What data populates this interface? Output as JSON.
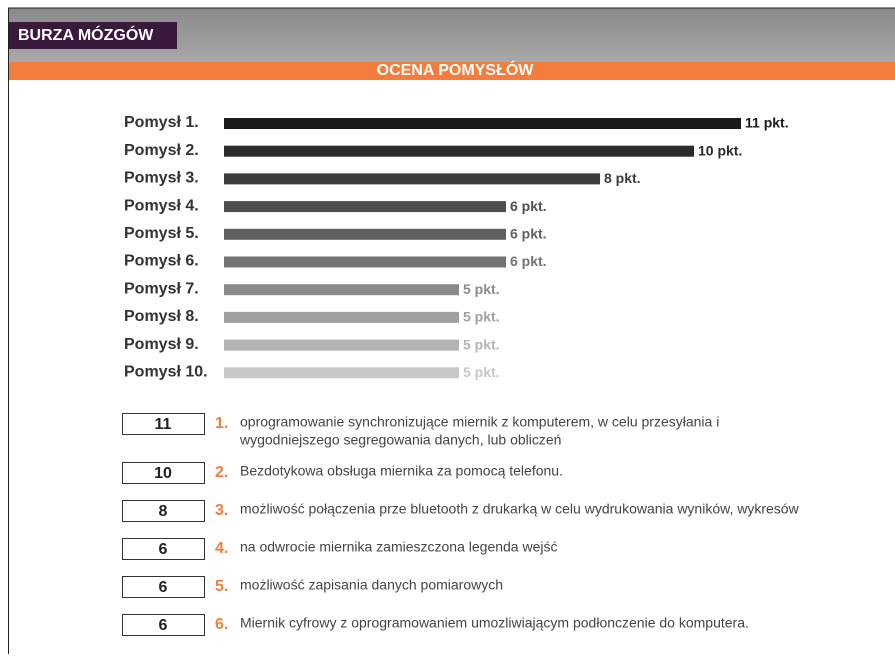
{
  "header": {
    "title": "BURZA MÓZGÓW",
    "section_title": "OCENA POMYSŁÓW"
  },
  "chart_data": {
    "type": "bar",
    "orientation": "horizontal",
    "categories": [
      "Pomysł 1.",
      "Pomysł 2.",
      "Pomysł 3.",
      "Pomysł 4.",
      "Pomysł 5.",
      "Pomysł 6.",
      "Pomysł 7.",
      "Pomysł 8.",
      "Pomysł 9.",
      "Pomysł 10."
    ],
    "values": [
      11,
      10,
      8,
      6,
      6,
      6,
      5,
      5,
      5,
      5
    ],
    "value_labels": [
      "11 pkt.",
      "10 pkt.",
      "8 pkt.",
      "6 pkt.",
      "6 pkt.",
      "6 pkt.",
      "5 pkt.",
      "5 pkt.",
      "5 pkt.",
      "5 pkt."
    ],
    "colors": [
      "#1a1a1a",
      "#2b2b2b",
      "#3c3c3c",
      "#4e4e4e",
      "#606060",
      "#737373",
      "#8a8a8a",
      "#a0a0a0",
      "#b4b4b4",
      "#c8c8c8"
    ]
  },
  "ideas": [
    {
      "score": 11,
      "number": "1.",
      "lines": [
        "oprogramowanie synchronizujące miernik z komputerem, w celu przesyłania i",
        "wygodniejszego segregowania danych, lub obliczeń"
      ]
    },
    {
      "score": 10,
      "number": "2.",
      "lines": [
        "Bezdotykowa obsługa miernika za pomocą telefonu."
      ]
    },
    {
      "score": 8,
      "number": "3.",
      "lines": [
        "możliwość połączenia prze bluetooth z drukarką w celu wydrukowania wyników, wykresów"
      ]
    },
    {
      "score": 6,
      "number": "4.",
      "lines": [
        "na odwrocie miernika zamieszczona legenda wejść"
      ]
    },
    {
      "score": 6,
      "number": "5.",
      "lines": [
        "możliwość zapisania danych pomiarowych"
      ]
    },
    {
      "score": 6,
      "number": "6.",
      "lines": [
        "Miernik cyfrowy z oprogramowaniem umozliwiającym podłonczenie do komputera."
      ]
    }
  ]
}
